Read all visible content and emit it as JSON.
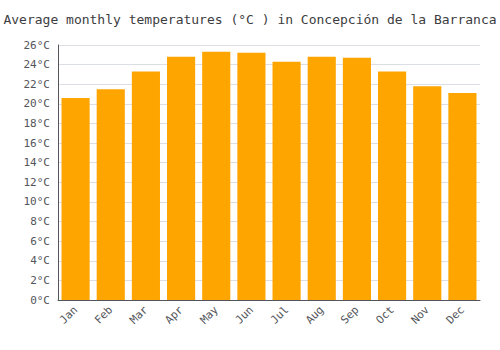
{
  "chart_data": {
    "type": "bar",
    "title": "Average monthly temperatures (°C ) in Concepción de la Barranca",
    "categories": [
      "Jan",
      "Feb",
      "Mar",
      "Apr",
      "May",
      "Jun",
      "Jul",
      "Aug",
      "Sep",
      "Oct",
      "Nov",
      "Dec"
    ],
    "values": [
      20.6,
      21.5,
      23.3,
      24.8,
      25.3,
      25.2,
      24.3,
      24.8,
      24.7,
      23.3,
      21.8,
      21.1
    ],
    "color": "#FFA500",
    "ylim": [
      0,
      26
    ],
    "yticks": [
      {
        "value": 0,
        "label": "0°C"
      },
      {
        "value": 2,
        "label": "2°C"
      },
      {
        "value": 4,
        "label": "4°C"
      },
      {
        "value": 6,
        "label": "6°C"
      },
      {
        "value": 8,
        "label": "8°C"
      },
      {
        "value": 10,
        "label": "10°C"
      },
      {
        "value": 12,
        "label": "12°C"
      },
      {
        "value": 14,
        "label": "14°C"
      },
      {
        "value": 16,
        "label": "16°C"
      },
      {
        "value": 18,
        "label": "18°C"
      },
      {
        "value": 20,
        "label": "20°C"
      },
      {
        "value": 22,
        "label": "22°C"
      },
      {
        "value": 24,
        "label": "24°C"
      },
      {
        "value": 26,
        "label": "26°C"
      }
    ],
    "grid": true
  }
}
